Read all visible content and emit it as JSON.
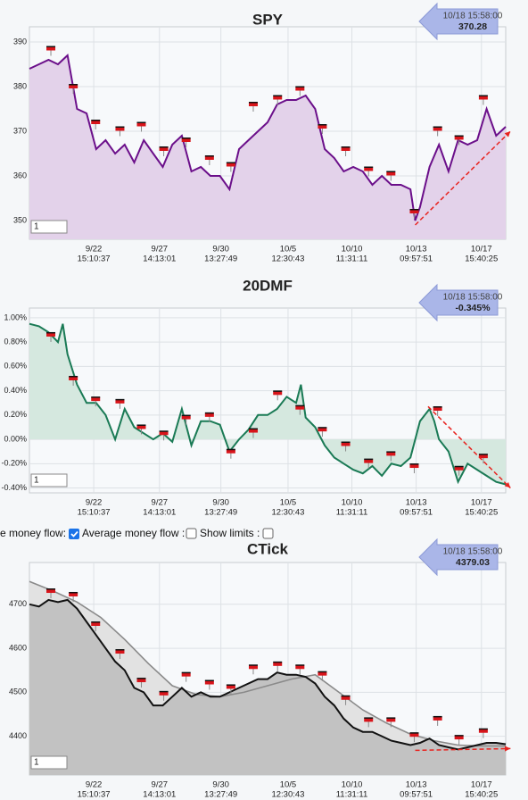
{
  "chart_data": [
    {
      "type": "line",
      "title": "SPY",
      "title_color": "#7b1f7b",
      "fill_base": "bottom",
      "grid": true,
      "xlim": [
        0,
        100
      ],
      "ylim": [
        345.8,
        393.4
      ],
      "yticks": [
        350,
        360,
        370,
        380,
        390
      ],
      "xticks": [
        {
          "value": 13.5,
          "label": [
            "9/22",
            "15:10:37"
          ]
        },
        {
          "value": 27.3,
          "label": [
            "9/27",
            "14:13:01"
          ]
        },
        {
          "value": 40.2,
          "label": [
            "9/30",
            "13:27:49"
          ]
        },
        {
          "value": 54.3,
          "label": [
            "10/5",
            "12:30:43"
          ]
        },
        {
          "value": 67.7,
          "label": [
            "10/10",
            "11:31:11"
          ]
        },
        {
          "value": 81.2,
          "label": [
            "10/13",
            "09:57:51"
          ]
        },
        {
          "value": 94.9,
          "label": [
            "10/17",
            "15:40:25"
          ]
        }
      ],
      "series": [
        {
          "color": "#6b0f8a",
          "fill": "#e3d2ea",
          "x": [
            0,
            2,
            4,
            6,
            8,
            10,
            12,
            14,
            16,
            18,
            20,
            22,
            24,
            26,
            28,
            30,
            32,
            34,
            36,
            38,
            40,
            42,
            44,
            46,
            48,
            50,
            52,
            54,
            56,
            58,
            60,
            62,
            64,
            66,
            68,
            70,
            72,
            74,
            76,
            78,
            80,
            81,
            82,
            84,
            86,
            88,
            90,
            92,
            94,
            96,
            98,
            100
          ],
          "values": [
            384,
            385,
            386,
            385,
            387,
            375,
            374,
            366,
            368,
            365,
            367,
            363,
            368,
            365,
            362,
            367,
            369,
            361,
            362,
            360,
            360,
            357,
            366,
            368,
            370,
            372,
            376,
            377,
            377,
            378,
            375,
            366,
            364,
            361,
            362,
            361,
            358,
            360,
            358,
            358,
            357,
            350,
            353,
            362,
            367,
            361,
            368,
            367,
            368,
            375,
            369,
            371
          ]
        }
      ],
      "flags": {
        "color": "#d8141a",
        "x": [
          4.5,
          9.2,
          13.9,
          19,
          23.5,
          28.2,
          32.9,
          37.8,
          42.3,
          47,
          52.1,
          56.8,
          61.5,
          66.4,
          71.2,
          75.9,
          80.8,
          85.7,
          90.2,
          95.3
        ],
        "y": [
          388.5,
          380,
          372,
          370.5,
          371.5,
          366,
          368,
          364,
          362.5,
          376,
          377.5,
          379.5,
          371,
          366,
          361.5,
          360.5,
          352,
          370.5,
          368.5,
          377.5
        ]
      },
      "trend": {
        "color": "#e8231f",
        "x": [
          81,
          101
        ],
        "y": [
          349,
          370
        ]
      },
      "badge": {
        "time": "10/18 15:58:00",
        "value": "370.28"
      },
      "zoom": "1"
    },
    {
      "type": "line",
      "title": "20DMF",
      "title_color": "#2f6e3a",
      "fill_base": "zero",
      "grid": true,
      "xlim": [
        0,
        100
      ],
      "ylim": [
        -0.44,
        1.08
      ],
      "yticks": [
        {
          "value": -0.4,
          "label": "-0.40%"
        },
        {
          "value": -0.2,
          "label": "-0.20%"
        },
        {
          "value": 0,
          "label": "0.00%"
        },
        {
          "value": 0.2,
          "label": "0.20%"
        },
        {
          "value": 0.4,
          "label": "0.40%"
        },
        {
          "value": 0.6,
          "label": "0.60%"
        },
        {
          "value": 0.8,
          "label": "0.80%"
        },
        {
          "value": 1,
          "label": "1.00%"
        }
      ],
      "xticks": [
        {
          "value": 13.5,
          "label": [
            "9/22",
            "15:10:37"
          ]
        },
        {
          "value": 27.3,
          "label": [
            "9/27",
            "14:13:01"
          ]
        },
        {
          "value": 40.2,
          "label": [
            "9/30",
            "13:27:49"
          ]
        },
        {
          "value": 54.3,
          "label": [
            "10/5",
            "12:30:43"
          ]
        },
        {
          "value": 67.7,
          "label": [
            "10/10",
            "11:31:11"
          ]
        },
        {
          "value": 81.2,
          "label": [
            "10/13",
            "09:57:51"
          ]
        },
        {
          "value": 94.9,
          "label": [
            "10/17",
            "15:40:25"
          ]
        }
      ],
      "series": [
        {
          "color": "#1a7a55",
          "fill": "#d5e8df",
          "x": [
            0,
            2,
            4,
            6,
            7,
            8,
            10,
            12,
            14,
            16,
            18,
            20,
            22,
            24,
            26,
            28,
            30,
            32,
            34,
            36,
            38,
            40,
            42,
            44,
            46,
            48,
            50,
            52,
            54,
            56,
            57,
            58,
            60,
            62,
            64,
            66,
            68,
            70,
            72,
            74,
            76,
            78,
            80,
            82,
            84,
            85,
            86,
            88,
            90,
            92,
            94,
            96,
            98,
            100
          ],
          "values": [
            0.95,
            0.93,
            0.88,
            0.8,
            0.95,
            0.7,
            0.45,
            0.3,
            0.3,
            0.2,
            0,
            0.25,
            0.1,
            0.05,
            0,
            0.05,
            -0.02,
            0.25,
            -0.05,
            0.15,
            0.15,
            0.12,
            -0.1,
            0,
            0.08,
            0.2,
            0.2,
            0.25,
            0.35,
            0.3,
            0.45,
            0.18,
            0.1,
            -0.05,
            -0.15,
            -0.2,
            -0.25,
            -0.28,
            -0.22,
            -0.3,
            -0.2,
            -0.22,
            -0.15,
            0.15,
            0.25,
            0.15,
            0,
            -0.1,
            -0.35,
            -0.2,
            -0.25,
            -0.3,
            -0.35,
            -0.37
          ]
        }
      ],
      "flags": {
        "color": "#d8141a",
        "x": [
          4.5,
          9.2,
          13.9,
          19,
          23.5,
          28.2,
          32.9,
          37.8,
          42.3,
          47,
          52.1,
          56.8,
          61.5,
          66.4,
          71.2,
          75.9,
          80.8,
          85.7,
          90.2,
          95.3
        ],
        "y": [
          0.86,
          0.5,
          0.33,
          0.31,
          0.1,
          0.05,
          0.18,
          0.2,
          -0.1,
          0.07,
          0.38,
          0.26,
          0.08,
          -0.04,
          -0.18,
          -0.12,
          -0.22,
          0.25,
          -0.24,
          -0.14
        ]
      },
      "trend": {
        "color": "#e8231f",
        "x": [
          83.7,
          101
        ],
        "y": [
          0.27,
          -0.4
        ]
      },
      "badge": {
        "time": "10/18 15:58:00",
        "value": "-0.345%"
      },
      "zoom": "1"
    },
    {
      "type": "line",
      "title": "CTick",
      "title_color": "#333333",
      "fill_base": "bottom",
      "grid": true,
      "xlim": [
        0,
        100
      ],
      "ylim": [
        4312,
        4795
      ],
      "yticks": [
        4400,
        4500,
        4600,
        4700
      ],
      "xticks": [
        {
          "value": 13.5,
          "label": [
            "9/22",
            "15:10:37"
          ]
        },
        {
          "value": 27.3,
          "label": [
            "9/27",
            "14:13:01"
          ]
        },
        {
          "value": 40.2,
          "label": [
            "9/30",
            "13:27:49"
          ]
        },
        {
          "value": 54.3,
          "label": [
            "10/5",
            "12:30:43"
          ]
        },
        {
          "value": 67.7,
          "label": [
            "10/10",
            "11:31:11"
          ]
        },
        {
          "value": 81.2,
          "label": [
            "10/13",
            "09:57:51"
          ]
        },
        {
          "value": 94.9,
          "label": [
            "10/17",
            "15:40:25"
          ]
        }
      ],
      "series": [
        {
          "color": "#8a8a8a",
          "fill": "#e2e2e2",
          "x": [
            0,
            5,
            10,
            15,
            20,
            25,
            30,
            35,
            40,
            45,
            50,
            55,
            60,
            65,
            70,
            75,
            80,
            85,
            90,
            95,
            100
          ],
          "values": [
            4752,
            4730,
            4705,
            4670,
            4620,
            4565,
            4515,
            4495,
            4490,
            4500,
            4515,
            4530,
            4540,
            4500,
            4460,
            4430,
            4405,
            4390,
            4380,
            4378,
            4378
          ]
        },
        {
          "color": "#111111",
          "fill": "#c2c2c2",
          "x": [
            0,
            2,
            4,
            6,
            8,
            10,
            12,
            14,
            16,
            18,
            20,
            22,
            24,
            26,
            28,
            30,
            32,
            34,
            36,
            38,
            40,
            42,
            44,
            46,
            48,
            50,
            52,
            54,
            56,
            58,
            60,
            62,
            64,
            66,
            68,
            70,
            72,
            74,
            76,
            78,
            80,
            82,
            84,
            86,
            88,
            90,
            92,
            94,
            96,
            98,
            100
          ],
          "values": [
            4700,
            4695,
            4710,
            4705,
            4710,
            4690,
            4660,
            4630,
            4600,
            4570,
            4550,
            4510,
            4500,
            4470,
            4470,
            4490,
            4510,
            4490,
            4500,
            4490,
            4490,
            4500,
            4510,
            4520,
            4530,
            4530,
            4545,
            4540,
            4540,
            4535,
            4520,
            4490,
            4470,
            4440,
            4420,
            4410,
            4410,
            4400,
            4390,
            4385,
            4380,
            4385,
            4395,
            4380,
            4375,
            4370,
            4375,
            4380,
            4385,
            4385,
            4382
          ]
        }
      ],
      "flags": {
        "color": "#d8141a",
        "x": [
          4.5,
          9.2,
          13.9,
          19,
          23.5,
          28.2,
          32.9,
          37.8,
          42.3,
          47,
          52.1,
          56.8,
          61.5,
          66.4,
          71.2,
          75.9,
          80.8,
          85.7,
          90.2,
          95.3
        ],
        "y": [
          4730,
          4722,
          4655,
          4592,
          4527,
          4497,
          4540,
          4522,
          4512,
          4557,
          4564,
          4557,
          4542,
          4487,
          4437,
          4437,
          4403,
          4440,
          4397,
          4412
        ]
      },
      "trend": {
        "color": "#e8231f",
        "x": [
          81,
          101
        ],
        "y": [
          4368,
          4372
        ]
      },
      "badge": {
        "time": "10/18 15:58:00",
        "value": "4379.03"
      },
      "zoom": "1"
    }
  ],
  "options": {
    "money_flow": "e money flow:",
    "average_money_flow": "Average money flow :",
    "show_limits": "Show limits :"
  }
}
